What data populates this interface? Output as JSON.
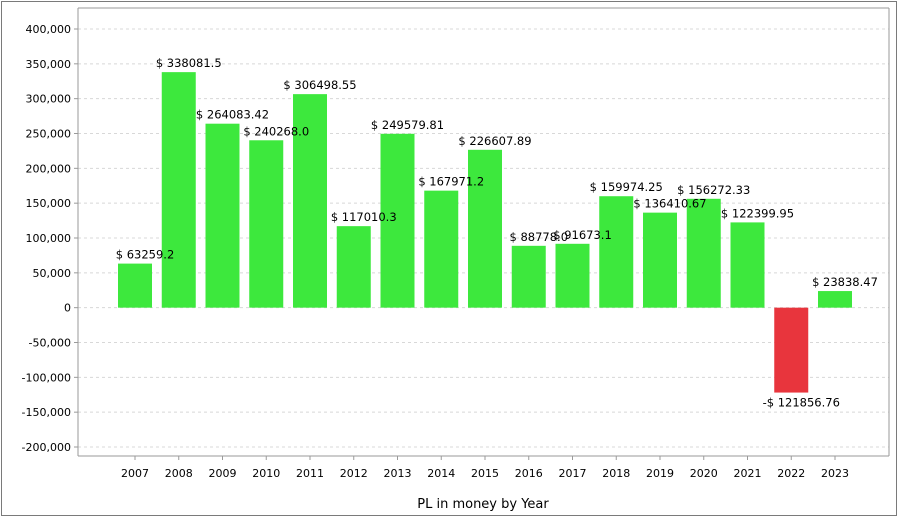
{
  "chart_data": {
    "type": "bar",
    "xlabel": "PL in money by Year",
    "ylabel": "",
    "ylim": [
      -200000,
      400000
    ],
    "yticks": [
      400000,
      350000,
      300000,
      250000,
      200000,
      150000,
      100000,
      50000,
      0,
      -50000,
      -100000,
      -150000,
      -200000
    ],
    "ytick_labels": [
      "400,000",
      "350,000",
      "300,000",
      "250,000",
      "200,000",
      "150,000",
      "100,000",
      "50,000",
      "0",
      "-50,000",
      "-100,000",
      "-150,000",
      "-200,000"
    ],
    "grid": true,
    "categories": [
      "2007",
      "2008",
      "2009",
      "2010",
      "2011",
      "2012",
      "2013",
      "2014",
      "2015",
      "2016",
      "2017",
      "2018",
      "2019",
      "2020",
      "2021",
      "2022",
      "2023"
    ],
    "values": [
      63259.2,
      338081.5,
      264083.42,
      240268.0,
      306498.55,
      117010.3,
      249579.81,
      167971.2,
      226607.89,
      88778.0,
      91673.1,
      159974.25,
      136410.67,
      156272.33,
      122399.95,
      -121856.76,
      23838.47
    ],
    "data_labels": [
      "$ 63259.2",
      "$ 338081.5",
      "$ 264083.42",
      "$ 240268.0",
      "$ 306498.55",
      "$ 117010.3",
      "$ 249579.81",
      "$ 167971.2",
      "$ 226607.89",
      "$ 88778.0",
      "$ 91673.1",
      "$ 159974.25",
      "$ 136410.67",
      "$ 156272.33",
      "$ 122399.95",
      "-$ 121856.76",
      "$ 23838.47"
    ],
    "colors": {
      "positive": "#3de83d",
      "negative": "#e8353d",
      "grid": "#d8d8d8",
      "axis": "#9a9a9a"
    }
  }
}
